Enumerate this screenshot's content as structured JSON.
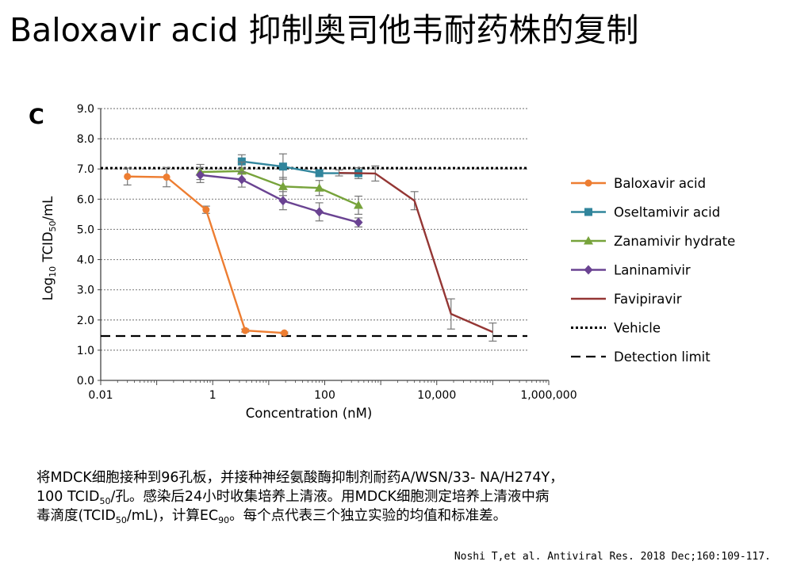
{
  "slide": {
    "title": "Baloxavir acid 抑制奥司他韦耐药株的复制"
  },
  "chart_data": {
    "type": "line",
    "panel_label": "C",
    "xlabel": "Concentration (nM)",
    "ylabel_parts": [
      "Log",
      "10",
      " TCID",
      "50",
      "/mL"
    ],
    "x_scale": "log",
    "xlim": [
      0.01,
      1000000
    ],
    "ylim": [
      0,
      9
    ],
    "x_tick_labels": [
      "0.01",
      "1",
      "100",
      "10,000",
      "1,000,000"
    ],
    "x_tick_values": [
      0.01,
      1,
      100,
      10000,
      1000000
    ],
    "y_tick_values": [
      0,
      1,
      2,
      3,
      4,
      5,
      6,
      7,
      8,
      9
    ],
    "y_tick_labels": [
      "0.0",
      "1.0",
      "2.0",
      "3.0",
      "4.0",
      "5.0",
      "6.0",
      "7.0",
      "8.0",
      "9.0"
    ],
    "grid": "horizontal dotted",
    "legend_position": "right",
    "series": [
      {
        "name": "Baloxavir acid",
        "color": "#ED7D31",
        "marker": "circle",
        "x": [
          0.03,
          0.15,
          0.76,
          3.8,
          19
        ],
        "y": [
          6.75,
          6.73,
          5.65,
          1.65,
          1.57
        ],
        "err": [
          0.28,
          0.32,
          0.12,
          0.05,
          0.03
        ]
      },
      {
        "name": "Oseltamivir acid",
        "color": "#31859C",
        "marker": "square",
        "x": [
          3.3,
          18,
          80,
          400
        ],
        "y": [
          7.25,
          7.08,
          6.86,
          6.86
        ],
        "err": [
          0.22,
          0.42,
          0.1,
          0.18
        ]
      },
      {
        "name": "Zanamivir hydrate",
        "color": "#77A33B",
        "marker": "triangle",
        "x": [
          0.6,
          3.3,
          18,
          80,
          400
        ],
        "y": [
          6.9,
          6.93,
          6.42,
          6.37,
          5.8
        ],
        "err": [
          0.25,
          0.3,
          0.3,
          0.25,
          0.3
        ]
      },
      {
        "name": "Laninamivir",
        "color": "#6A4392",
        "marker": "diamond",
        "x": [
          0.6,
          3.3,
          18,
          80,
          400
        ],
        "y": [
          6.8,
          6.65,
          5.95,
          5.58,
          5.23
        ],
        "err": [
          0.25,
          0.25,
          0.3,
          0.3,
          0.15
        ]
      },
      {
        "name": "Favipiravir",
        "color": "#943634",
        "marker": "none",
        "x": [
          180,
          800,
          4000,
          18000,
          100000
        ],
        "y": [
          6.87,
          6.85,
          5.95,
          2.2,
          1.6
        ],
        "err": [
          0.1,
          0.25,
          0.3,
          0.5,
          0.3
        ]
      }
    ],
    "reference_lines": [
      {
        "name": "Vehicle",
        "y": 7.03,
        "style": "dotted"
      },
      {
        "name": "Detection limit",
        "y": 1.47,
        "style": "dashed"
      }
    ]
  },
  "caption": {
    "line1": "将MDCK细胞接种到96孔板，并接种神经氨酸酶抑制剂耐药A/WSN/33- NA/H274Y，",
    "line2_a": "100 TCID",
    "line2_sub": "50",
    "line2_b": "/孔。感染后24小时收集培养上清液。用MDCK细胞测定培养上清液中病",
    "line3_a": "毒滴度(TCID",
    "line3_sub": "50",
    "line3_b": "/mL)，计算EC",
    "line3_sub2": "90",
    "line3_c": "。每个点代表三个独立实验的均值和标准差。"
  },
  "citation": "Noshi T,et al. Antiviral Res. 2018 Dec;160:109-117."
}
